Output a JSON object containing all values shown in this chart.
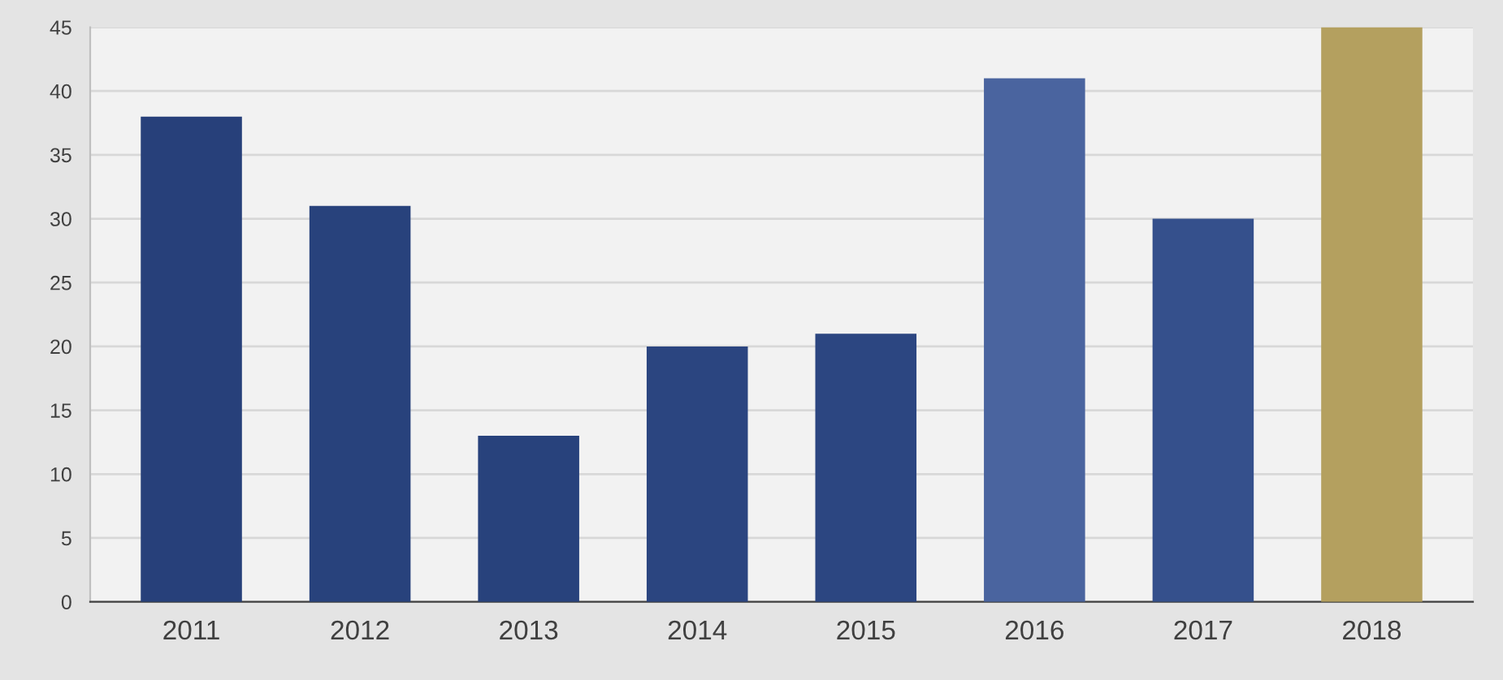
{
  "chart_data": {
    "type": "bar",
    "categories": [
      "2011",
      "2012",
      "2013",
      "2014",
      "2015",
      "2016",
      "2017",
      "2018"
    ],
    "values": [
      38,
      31,
      13,
      20,
      21,
      41,
      30,
      45
    ],
    "colors": [
      "#27407a",
      "#28427c",
      "#28427c",
      "#2b4580",
      "#2c4681",
      "#4a649f",
      "#35508c",
      "#b4a05f"
    ],
    "ylim": [
      0,
      45
    ],
    "yticks": [
      0,
      5,
      10,
      15,
      20,
      25,
      30,
      35,
      40,
      45
    ],
    "grid": "y"
  }
}
